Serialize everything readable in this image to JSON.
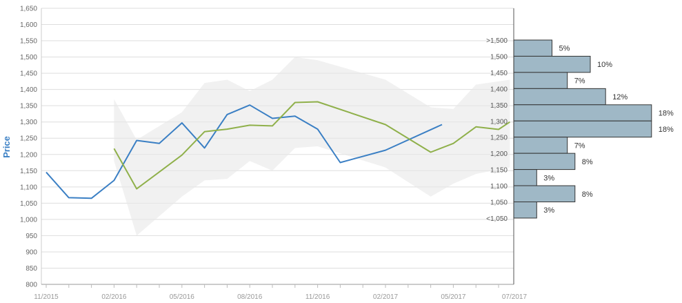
{
  "chart_data": {
    "type": "line",
    "ylabel": "Price",
    "ylim": [
      800,
      1650
    ],
    "yticks": [
      "800",
      "850",
      "900",
      "950",
      "1,000",
      "1,050",
      "1,100",
      "1,150",
      "1,200",
      "1,250",
      "1,300",
      "1,350",
      "1,400",
      "1,450",
      "1,500",
      "1,550",
      "1,600",
      "1,650"
    ],
    "xticks": [
      "11/2015",
      "02/2016",
      "05/2016",
      "08/2016",
      "11/2016",
      "02/2017",
      "05/2017",
      "07/2017"
    ],
    "grid": true,
    "series": [
      {
        "color": "#3a7fc4",
        "x": [
          0,
          1,
          2,
          3,
          4,
          5,
          6,
          7,
          8,
          9,
          10,
          11,
          12,
          13,
          15,
          17.5
        ],
        "values": [
          1145,
          1067,
          1065,
          1120,
          1243,
          1234,
          1297,
          1220,
          1323,
          1352,
          1311,
          1318,
          1278,
          1175,
          1213,
          1292
        ]
      },
      {
        "color": "#8fb04a",
        "x": [
          3,
          4,
          6,
          7,
          8,
          9,
          10,
          11,
          12,
          15,
          17,
          18,
          19,
          20,
          20.5
        ],
        "values": [
          1218,
          1094,
          1198,
          1270,
          1278,
          1290,
          1288,
          1360,
          1362,
          1292,
          1207,
          1234,
          1285,
          1277,
          1300
        ]
      }
    ],
    "band": {
      "color": "#e8e8e8",
      "x": [
        3,
        4,
        6,
        7,
        8,
        9,
        10,
        11,
        12,
        15,
        17,
        18,
        19,
        20.5
      ],
      "upper": [
        1370,
        1245,
        1330,
        1420,
        1430,
        1395,
        1430,
        1500,
        1490,
        1430,
        1345,
        1340,
        1415,
        1430
      ],
      "lower": [
        1180,
        950,
        1070,
        1120,
        1125,
        1180,
        1150,
        1220,
        1225,
        1160,
        1070,
        1110,
        1140,
        1160
      ]
    },
    "histogram": {
      "color": "#9fb8c6",
      "bins": [
        {
          "label": ">1,500",
          "pct": "5%",
          "value": 5
        },
        {
          "label": "1,500",
          "pct": "10%",
          "value": 10
        },
        {
          "label": "1,450",
          "pct": "7%",
          "value": 7
        },
        {
          "label": "1,400",
          "pct": "12%",
          "value": 12
        },
        {
          "label": "1,350",
          "pct": "18%",
          "value": 18
        },
        {
          "label": "1,300",
          "pct": "18%",
          "value": 18
        },
        {
          "label": "1,250",
          "pct": "7%",
          "value": 7
        },
        {
          "label": "1,200",
          "pct": "8%",
          "value": 8
        },
        {
          "label": "1,150",
          "pct": "3%",
          "value": 3
        },
        {
          "label": "1,100",
          "pct": "8%",
          "value": 8
        },
        {
          "label": "1,050",
          "pct": "3%",
          "value": 3
        },
        {
          "label": "<1,050",
          "pct": "",
          "value": 0
        }
      ]
    }
  }
}
